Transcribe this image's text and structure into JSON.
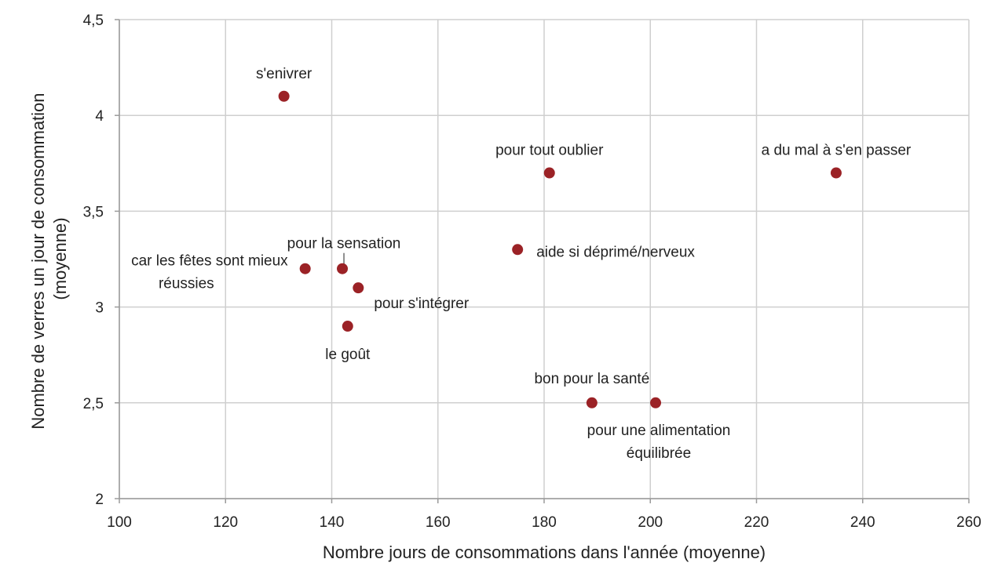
{
  "chart_data": {
    "type": "scatter",
    "title": "",
    "xlabel": "Nombre jours de consommations dans l'année (moyenne)",
    "ylabel": "Nombre  de verres  un jour de consommation (moyenne)",
    "ylabel_lines": [
      "Nombre  de verres  un jour de consommation",
      "(moyenne)"
    ],
    "xlim": [
      100,
      260
    ],
    "ylim": [
      2,
      4.5
    ],
    "xticks": [
      100,
      120,
      140,
      160,
      180,
      200,
      220,
      240,
      260
    ],
    "xtick_labels": [
      "100",
      "120",
      "140",
      "160",
      "180",
      "200",
      "220",
      "240",
      "260"
    ],
    "yticks": [
      2,
      2.5,
      3,
      3.5,
      4,
      4.5
    ],
    "ytick_labels": [
      "2",
      "2,5",
      "3",
      "3,5",
      "4",
      "4,5"
    ],
    "grid": true,
    "legend": "none",
    "marker_color": "#9b2226",
    "points": [
      {
        "x": 131,
        "y": 4.1,
        "label_lines": [
          "s'enivrer"
        ]
      },
      {
        "x": 181,
        "y": 3.7,
        "label_lines": [
          "pour tout oublier"
        ]
      },
      {
        "x": 235,
        "y": 3.7,
        "label_lines": [
          "a du mal à s'en passer"
        ]
      },
      {
        "x": 175,
        "y": 3.3,
        "label_lines": [
          "aide si déprimé/nerveux"
        ]
      },
      {
        "x": 135,
        "y": 3.2,
        "label_lines": [
          "car les fêtes sont mieux",
          "réussies"
        ]
      },
      {
        "x": 142,
        "y": 3.2,
        "label_lines": [
          "pour la sensation"
        ]
      },
      {
        "x": 145,
        "y": 3.1,
        "label_lines": [
          "pour s'intégrer"
        ]
      },
      {
        "x": 143,
        "y": 2.9,
        "label_lines": [
          "le goût"
        ]
      },
      {
        "x": 189,
        "y": 2.5,
        "label_lines": [
          "bon pour la santé"
        ]
      },
      {
        "x": 201,
        "y": 2.5,
        "label_lines": [
          "pour une alimentation",
          "équilibrée"
        ]
      }
    ]
  }
}
